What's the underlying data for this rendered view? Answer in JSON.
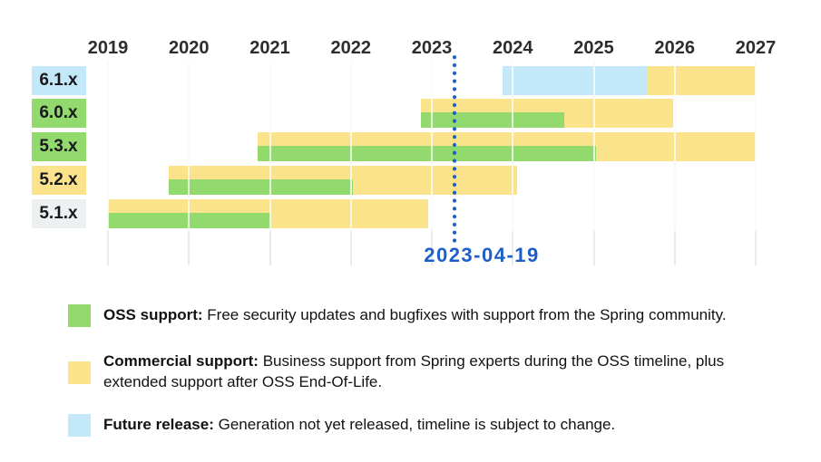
{
  "chart_data": {
    "type": "gantt",
    "x_axis": {
      "tick_labels": [
        "2019",
        "2020",
        "2021",
        "2022",
        "2023",
        "2024",
        "2025",
        "2026",
        "2027"
      ],
      "range": [
        2019,
        2027
      ],
      "grid": true
    },
    "marker": {
      "date": "2023-04-19",
      "year": 2023.28
    },
    "rows": [
      {
        "label": "6.1.x",
        "label_bg": "future",
        "segments": [
          {
            "kind": "future",
            "start": 2023.87,
            "end": 2025.65
          },
          {
            "kind": "commercial",
            "start": 2025.65,
            "end": 2027.0
          }
        ]
      },
      {
        "label": "6.0.x",
        "label_bg": "oss",
        "segments": [
          {
            "kind": "commercial",
            "start": 2022.86,
            "end": 2025.98
          },
          {
            "kind": "oss",
            "start": 2022.86,
            "end": 2024.64
          }
        ]
      },
      {
        "label": "5.3.x",
        "label_bg": "oss",
        "segments": [
          {
            "kind": "commercial",
            "start": 2020.85,
            "end": 2027.0
          },
          {
            "kind": "oss",
            "start": 2020.85,
            "end": 2025.03
          }
        ]
      },
      {
        "label": "5.2.x",
        "label_bg": "commercial",
        "segments": [
          {
            "kind": "commercial",
            "start": 2019.75,
            "end": 2024.05
          },
          {
            "kind": "oss",
            "start": 2019.75,
            "end": 2022.02
          }
        ]
      },
      {
        "label": "5.1.x",
        "label_bg": "gray",
        "segments": [
          {
            "kind": "commercial",
            "start": 2019.0,
            "end": 2022.95
          },
          {
            "kind": "oss",
            "start": 2019.0,
            "end": 2021.0
          }
        ]
      }
    ]
  },
  "legend": {
    "items": [
      {
        "kind": "oss",
        "label": "OSS support:",
        "text": "Free security updates and bugfixes with support from the Spring community.",
        "text2": ""
      },
      {
        "kind": "commercial",
        "label": "Commercial support:",
        "text": "Business support from Spring experts during the OSS timeline, plus",
        "text2": "extended support after OSS End-Of-Life."
      },
      {
        "kind": "future",
        "label": "Future release:",
        "text": "Generation not yet released, timeline is subject to change.",
        "text2": ""
      }
    ]
  },
  "colors": {
    "oss": "#92d96e",
    "commercial": "#fbe38b",
    "future": "#c3e8fa",
    "gray": "#edf0f0",
    "marker": "#1d5ec9",
    "grid": "#e8ebeb",
    "axis_text": "#2d2d2d",
    "label_text": "#17191c",
    "legend_text": "#121212"
  }
}
